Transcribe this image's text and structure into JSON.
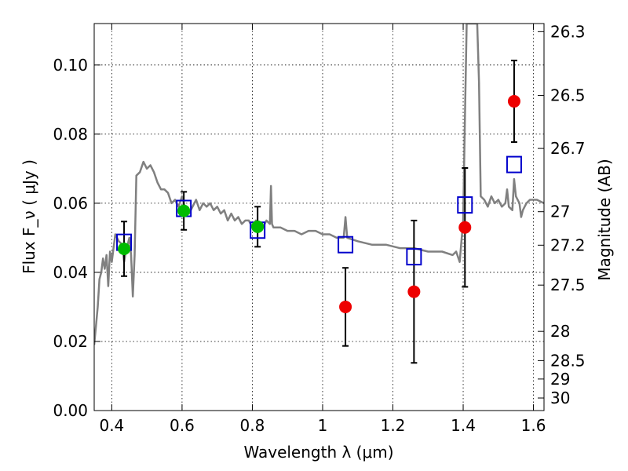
{
  "chart_data": {
    "type": "scatter",
    "xlabel": "Wavelength  λ (μm)",
    "ylabel": "Flux  F_ν  ( μJy )",
    "y2label": "Magnitude (AB)",
    "xlim": [
      0.35,
      1.63
    ],
    "ylim": [
      0.0,
      0.112
    ],
    "grid": true,
    "x_ticks": [
      {
        "value": 0.4,
        "label": "0.4"
      },
      {
        "value": 0.6,
        "label": "0.6"
      },
      {
        "value": 0.8,
        "label": "0.8"
      },
      {
        "value": 1.0,
        "label": "1"
      },
      {
        "value": 1.2,
        "label": "1.2"
      },
      {
        "value": 1.4,
        "label": "1.4"
      },
      {
        "value": 1.6,
        "label": "1.6"
      }
    ],
    "y_ticks": [
      {
        "value": 0.0,
        "label": "0.00"
      },
      {
        "value": 0.02,
        "label": "0.02"
      },
      {
        "value": 0.04,
        "label": "0.04"
      },
      {
        "value": 0.06,
        "label": "0.06"
      },
      {
        "value": 0.08,
        "label": "0.08"
      },
      {
        "value": 0.1,
        "label": "0.10"
      }
    ],
    "y2_ticks": [
      {
        "mag": 26.3,
        "label": "26.3"
      },
      {
        "mag": 26.5,
        "label": "26.5"
      },
      {
        "mag": 26.7,
        "label": "26.7"
      },
      {
        "mag": 27.0,
        "label": "27"
      },
      {
        "mag": 27.2,
        "label": "27.2"
      },
      {
        "mag": 27.5,
        "label": "27.5"
      },
      {
        "mag": 28.0,
        "label": "28"
      },
      {
        "mag": 28.5,
        "label": "28.5"
      },
      {
        "mag": 29.0,
        "label": "29"
      },
      {
        "mag": 30.0,
        "label": "30"
      }
    ],
    "series": [
      {
        "kind": "line",
        "color": "#808080",
        "points": [
          [
            0.35,
            0.019
          ],
          [
            0.36,
            0.03
          ],
          [
            0.365,
            0.038
          ],
          [
            0.37,
            0.04
          ],
          [
            0.375,
            0.044
          ],
          [
            0.38,
            0.041
          ],
          [
            0.385,
            0.045
          ],
          [
            0.39,
            0.036
          ],
          [
            0.395,
            0.046
          ],
          [
            0.4,
            0.043
          ],
          [
            0.405,
            0.047
          ],
          [
            0.41,
            0.051
          ],
          [
            0.42,
            0.049
          ],
          [
            0.43,
            0.048
          ],
          [
            0.435,
            0.043
          ],
          [
            0.44,
            0.046
          ],
          [
            0.45,
            0.05
          ],
          [
            0.455,
            0.045
          ],
          [
            0.46,
            0.033
          ],
          [
            0.465,
            0.045
          ],
          [
            0.47,
            0.068
          ],
          [
            0.48,
            0.069
          ],
          [
            0.49,
            0.072
          ],
          [
            0.5,
            0.07
          ],
          [
            0.51,
            0.071
          ],
          [
            0.52,
            0.069
          ],
          [
            0.53,
            0.066
          ],
          [
            0.54,
            0.064
          ],
          [
            0.55,
            0.064
          ],
          [
            0.56,
            0.063
          ],
          [
            0.57,
            0.06
          ],
          [
            0.58,
            0.061
          ],
          [
            0.59,
            0.059
          ],
          [
            0.6,
            0.062
          ],
          [
            0.61,
            0.058
          ],
          [
            0.62,
            0.057
          ],
          [
            0.63,
            0.059
          ],
          [
            0.64,
            0.061
          ],
          [
            0.65,
            0.058
          ],
          [
            0.66,
            0.06
          ],
          [
            0.67,
            0.059
          ],
          [
            0.68,
            0.06
          ],
          [
            0.69,
            0.058
          ],
          [
            0.7,
            0.059
          ],
          [
            0.71,
            0.057
          ],
          [
            0.72,
            0.058
          ],
          [
            0.73,
            0.055
          ],
          [
            0.74,
            0.057
          ],
          [
            0.75,
            0.055
          ],
          [
            0.76,
            0.056
          ],
          [
            0.77,
            0.054
          ],
          [
            0.78,
            0.055
          ],
          [
            0.79,
            0.055
          ],
          [
            0.8,
            0.053
          ],
          [
            0.81,
            0.055
          ],
          [
            0.82,
            0.054
          ],
          [
            0.83,
            0.053
          ],
          [
            0.84,
            0.055
          ],
          [
            0.85,
            0.054
          ],
          [
            0.853,
            0.065
          ],
          [
            0.856,
            0.054
          ],
          [
            0.86,
            0.053
          ],
          [
            0.88,
            0.053
          ],
          [
            0.9,
            0.052
          ],
          [
            0.92,
            0.052
          ],
          [
            0.94,
            0.051
          ],
          [
            0.96,
            0.052
          ],
          [
            0.98,
            0.052
          ],
          [
            1.0,
            0.051
          ],
          [
            1.02,
            0.051
          ],
          [
            1.04,
            0.05
          ],
          [
            1.06,
            0.05
          ],
          [
            1.065,
            0.056
          ],
          [
            1.07,
            0.05
          ],
          [
            1.1,
            0.049
          ],
          [
            1.14,
            0.048
          ],
          [
            1.18,
            0.048
          ],
          [
            1.22,
            0.047
          ],
          [
            1.26,
            0.047
          ],
          [
            1.3,
            0.046
          ],
          [
            1.34,
            0.046
          ],
          [
            1.37,
            0.045
          ],
          [
            1.38,
            0.046
          ],
          [
            1.39,
            0.043
          ],
          [
            1.4,
            0.055
          ],
          [
            1.405,
            0.085
          ],
          [
            1.41,
            0.112
          ],
          [
            1.44,
            0.112
          ],
          [
            1.445,
            0.095
          ],
          [
            1.45,
            0.062
          ],
          [
            1.46,
            0.061
          ],
          [
            1.47,
            0.059
          ],
          [
            1.48,
            0.062
          ],
          [
            1.49,
            0.06
          ],
          [
            1.5,
            0.061
          ],
          [
            1.51,
            0.059
          ],
          [
            1.52,
            0.06
          ],
          [
            1.525,
            0.064
          ],
          [
            1.53,
            0.059
          ],
          [
            1.54,
            0.058
          ],
          [
            1.545,
            0.067
          ],
          [
            1.55,
            0.062
          ],
          [
            1.56,
            0.06
          ],
          [
            1.565,
            0.056
          ],
          [
            1.57,
            0.058
          ],
          [
            1.58,
            0.06
          ],
          [
            1.59,
            0.061
          ],
          [
            1.61,
            0.061
          ],
          [
            1.63,
            0.06
          ]
        ]
      },
      {
        "kind": "square",
        "color": "#0000cc",
        "points": [
          [
            0.435,
            0.0487
          ],
          [
            0.605,
            0.0585
          ],
          [
            0.815,
            0.0522
          ],
          [
            1.065,
            0.048
          ],
          [
            1.26,
            0.0445
          ],
          [
            1.405,
            0.0595
          ],
          [
            1.545,
            0.0712
          ]
        ]
      },
      {
        "kind": "circle",
        "color": "#00bb00",
        "points": [
          [
            0.435,
            0.0468,
            0.0079
          ],
          [
            0.605,
            0.0578,
            0.0055
          ],
          [
            0.815,
            0.0532,
            0.0058
          ]
        ]
      },
      {
        "kind": "circle",
        "color": "#ee0000",
        "points": [
          [
            1.065,
            0.03,
            0.0113
          ],
          [
            1.26,
            0.0344,
            0.0206
          ],
          [
            1.405,
            0.053,
            0.0172
          ],
          [
            1.545,
            0.0895,
            0.0118
          ]
        ]
      }
    ]
  }
}
